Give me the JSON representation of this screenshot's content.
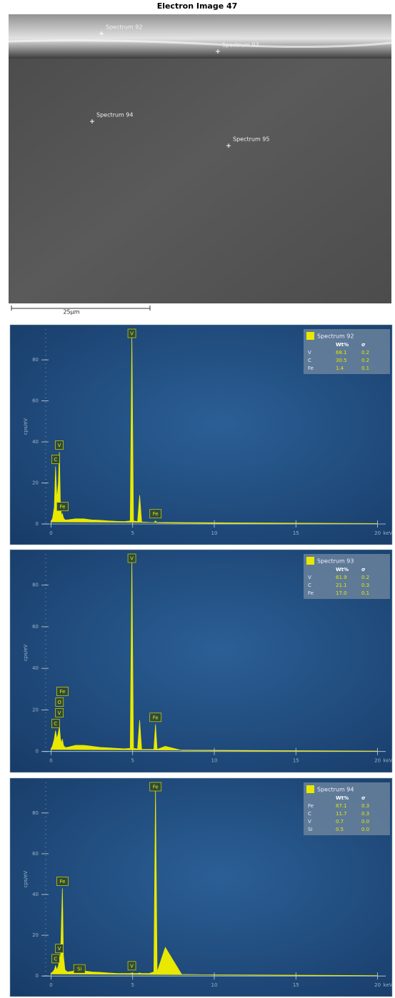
{
  "image": {
    "title": "Electron Image 47",
    "markers": [
      {
        "label": "Spectrum 92"
      },
      {
        "label": "Spectrum 93"
      },
      {
        "label": "Spectrum 94"
      },
      {
        "label": "Spectrum 95"
      }
    ],
    "scale_bar": "25μm"
  },
  "chart_data": [
    {
      "type": "area",
      "y_label": "cps/eV",
      "x_label": "keV",
      "xlim": [
        -0.5,
        20.5
      ],
      "ylim": [
        -8,
        95
      ],
      "xticks": [
        0,
        5,
        10,
        15,
        20
      ],
      "yticks": [
        0,
        20,
        40,
        60,
        80
      ],
      "series": [
        {
          "name": "Spectrum 92",
          "color": "#e8e800",
          "x": [
            0,
            0.1,
            0.2,
            0.28,
            0.36,
            0.45,
            0.51,
            0.58,
            0.65,
            0.7,
            0.76,
            0.85,
            1.0,
            1.5,
            2.0,
            2.5,
            3.0,
            3.5,
            4.0,
            4.5,
            4.85,
            4.95,
            5.05,
            5.3,
            5.43,
            5.55,
            6.0,
            6.3,
            6.4,
            6.5,
            7.0,
            8,
            10,
            12,
            14,
            16,
            18,
            20
          ],
          "values": [
            1,
            3,
            8,
            28,
            12,
            20,
            35,
            8,
            4,
            5,
            3,
            2,
            2,
            2.5,
            2.5,
            2,
            1.8,
            1.5,
            1.3,
            1.2,
            1.5,
            92,
            1.5,
            1.2,
            14,
            1,
            0.8,
            0.7,
            1.5,
            0.6,
            0.5,
            0.4,
            0.3,
            0.3,
            0.2,
            0.2,
            0.2,
            0.2
          ]
        }
      ],
      "annotations": [
        {
          "text": "C",
          "x": 0.28
        },
        {
          "text": "V",
          "x": 0.51
        },
        {
          "text": "Fe",
          "x": 0.7
        },
        {
          "text": "V",
          "x": 4.95
        },
        {
          "text": "Fe",
          "x": 6.4
        }
      ],
      "legend": {
        "header": [
          "Wt%",
          "σ"
        ],
        "rows": [
          [
            "V",
            "68.1",
            "0.2"
          ],
          [
            "C",
            "30.5",
            "0.2"
          ],
          [
            "Fe",
            "1.4",
            "0.1"
          ]
        ]
      }
    },
    {
      "type": "area",
      "y_label": "cps/eV",
      "x_label": "keV",
      "xlim": [
        -0.5,
        20.5
      ],
      "ylim": [
        -8,
        95
      ],
      "xticks": [
        0,
        5,
        10,
        15,
        20
      ],
      "yticks": [
        0,
        20,
        40,
        60,
        80
      ],
      "series": [
        {
          "name": "Spectrum 93",
          "color": "#e8e800",
          "x": [
            0,
            0.1,
            0.2,
            0.28,
            0.36,
            0.45,
            0.51,
            0.58,
            0.65,
            0.7,
            0.76,
            0.85,
            1.0,
            1.5,
            2.0,
            2.5,
            3.0,
            3.5,
            4.0,
            4.5,
            4.85,
            4.95,
            5.05,
            5.3,
            5.43,
            5.55,
            6.0,
            6.3,
            6.4,
            6.5,
            7.0,
            8,
            10,
            12,
            14,
            16,
            18,
            20
          ],
          "values": [
            1,
            3,
            6,
            10,
            6,
            9,
            12,
            6,
            4,
            6,
            3,
            2,
            2,
            3,
            3,
            2.5,
            2,
            1.8,
            1.5,
            1.3,
            1.5,
            92,
            1.5,
            1.2,
            15,
            1,
            1,
            1,
            13,
            1,
            2.5,
            0.5,
            0.4,
            0.3,
            0.3,
            0.2,
            0.2,
            0.2
          ]
        }
      ],
      "annotations": [
        {
          "text": "C",
          "x": 0.28
        },
        {
          "text": "V",
          "x": 0.51
        },
        {
          "text": "O",
          "x": 0.52
        },
        {
          "text": "Fe",
          "x": 0.7
        },
        {
          "text": "V",
          "x": 4.95
        },
        {
          "text": "Fe",
          "x": 6.4
        }
      ],
      "legend": {
        "header": [
          "Wt%",
          "σ"
        ],
        "rows": [
          [
            "V",
            "61.9",
            "0.2"
          ],
          [
            "C",
            "21.1",
            "0.3"
          ],
          [
            "Fe",
            "17.0",
            "0.1"
          ]
        ]
      }
    },
    {
      "type": "area",
      "y_label": "cps/eV",
      "x_label": "keV",
      "xlim": [
        -0.5,
        20.5
      ],
      "ylim": [
        -8,
        95
      ],
      "xticks": [
        0,
        5,
        10,
        15,
        20
      ],
      "yticks": [
        0,
        20,
        40,
        60,
        80
      ],
      "series": [
        {
          "name": "Spectrum 94",
          "color": "#e8e800",
          "x": [
            0,
            0.1,
            0.2,
            0.28,
            0.36,
            0.45,
            0.51,
            0.58,
            0.65,
            0.7,
            0.76,
            0.85,
            1.0,
            1.5,
            2.0,
            2.5,
            3.0,
            3.5,
            4.0,
            4.5,
            4.85,
            4.95,
            5.05,
            5.3,
            5.43,
            5.55,
            6.0,
            6.3,
            6.4,
            6.5,
            7.0,
            8,
            10,
            12,
            14,
            16,
            18,
            20
          ],
          "values": [
            1,
            2,
            3,
            5,
            3,
            5,
            8,
            10,
            30,
            43,
            10,
            3,
            2,
            2.5,
            2.5,
            2,
            1.8,
            1.5,
            1.3,
            1.2,
            1.2,
            1.5,
            1.2,
            1.2,
            1.5,
            1.2,
            1.2,
            2,
            92,
            2,
            14,
            0.8,
            0.5,
            0.4,
            0.3,
            0.2,
            0.2,
            0.2
          ]
        }
      ],
      "annotations": [
        {
          "text": "C",
          "x": 0.28
        },
        {
          "text": "V",
          "x": 0.51
        },
        {
          "text": "Fe",
          "x": 0.7
        },
        {
          "text": "Si",
          "x": 1.74
        },
        {
          "text": "V",
          "x": 4.95
        },
        {
          "text": "Fe",
          "x": 6.4
        }
      ],
      "legend": {
        "header": [
          "Wt%",
          "σ"
        ],
        "rows": [
          [
            "Fe",
            "87.1",
            "0.3"
          ],
          [
            "C",
            "11.7",
            "0.3"
          ],
          [
            "V",
            "0.7",
            "0.0"
          ],
          [
            "Si",
            "0.5",
            "0.0"
          ]
        ]
      }
    }
  ]
}
